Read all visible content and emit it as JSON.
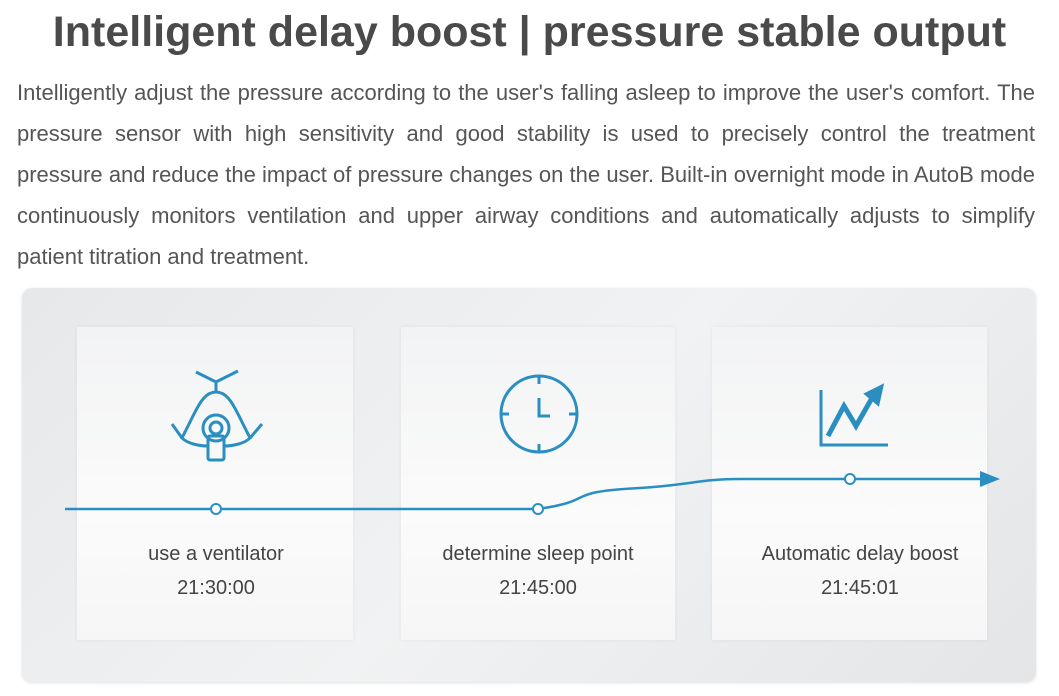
{
  "header": {
    "title": "Intelligent delay boost | pressure stable output",
    "description": "Intelligently adjust the pressure according to the user's falling asleep to improve the user's comfort. The pressure sensor with high sensitivity and good stability is used to precisely control the treatment pressure and reduce the impact of pressure changes on the user. Built-in overnight mode in AutoB mode continuously monitors ventilation and upper airway conditions and automatically adjusts to simplify patient titration and treatment."
  },
  "steps": [
    {
      "label": "use a ventilator",
      "time": "21:30:00"
    },
    {
      "label": "determine sleep point",
      "time": "21:45:00"
    },
    {
      "label": "Automatic delay boost",
      "time": "21:45:01"
    }
  ]
}
